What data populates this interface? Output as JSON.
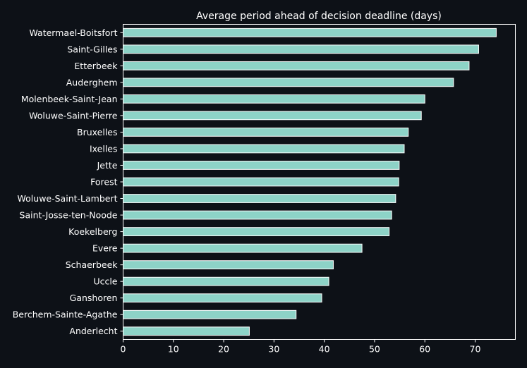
{
  "chart_data": {
    "type": "bar",
    "orientation": "horizontal",
    "title": "Average period ahead of decision deadline (days)",
    "xlabel": "",
    "ylabel": "",
    "xlim": [
      0,
      78
    ],
    "xticks": [
      0,
      10,
      20,
      30,
      40,
      50,
      60,
      70
    ],
    "grid": false,
    "bar_color": "#8dd3c7",
    "background_color": "#0d1117",
    "categories": [
      "Watermael-Boitsfort",
      "Saint-Gilles",
      "Etterbeek",
      "Auderghem",
      "Molenbeek-Saint-Jean",
      "Woluwe-Saint-Pierre",
      "Bruxelles",
      "Ixelles",
      "Jette",
      "Forest",
      "Woluwe-Saint-Lambert",
      "Saint-Josse-ten-Noode",
      "Koekelberg",
      "Evere",
      "Schaerbeek",
      "Uccle",
      "Ganshoren",
      "Berchem-Sainte-Agathe",
      "Anderlecht"
    ],
    "values": [
      74.2,
      70.7,
      68.8,
      65.7,
      60.0,
      59.3,
      56.7,
      55.9,
      54.9,
      54.8,
      54.2,
      53.4,
      52.9,
      47.5,
      41.8,
      40.9,
      39.5,
      34.4,
      25.1
    ]
  }
}
